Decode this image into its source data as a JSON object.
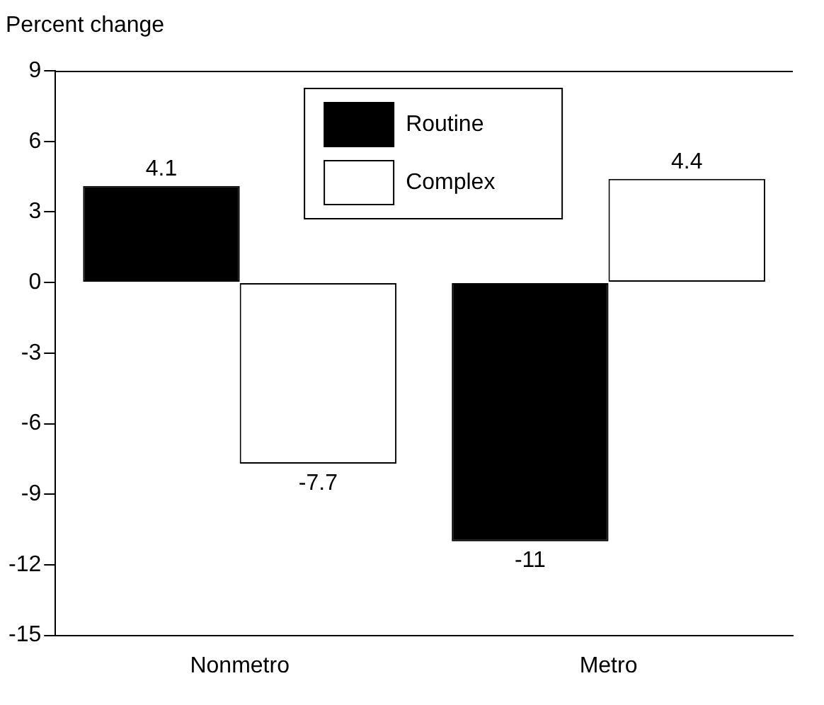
{
  "chart_data": {
    "type": "bar",
    "ylabel": "Percent change",
    "categories": [
      "Nonmetro",
      "Metro"
    ],
    "series": [
      {
        "name": "Routine",
        "color": "#000000",
        "values": [
          4.1,
          -11
        ]
      },
      {
        "name": "Complex",
        "color": "#ffffff",
        "values": [
          -7.7,
          4.4
        ]
      }
    ],
    "ylim": [
      -15,
      9
    ],
    "yticks": [
      -15,
      -12,
      -9,
      -6,
      -3,
      0,
      3,
      6,
      9
    ],
    "grid": false,
    "legend": "top",
    "data_labels": true
  }
}
